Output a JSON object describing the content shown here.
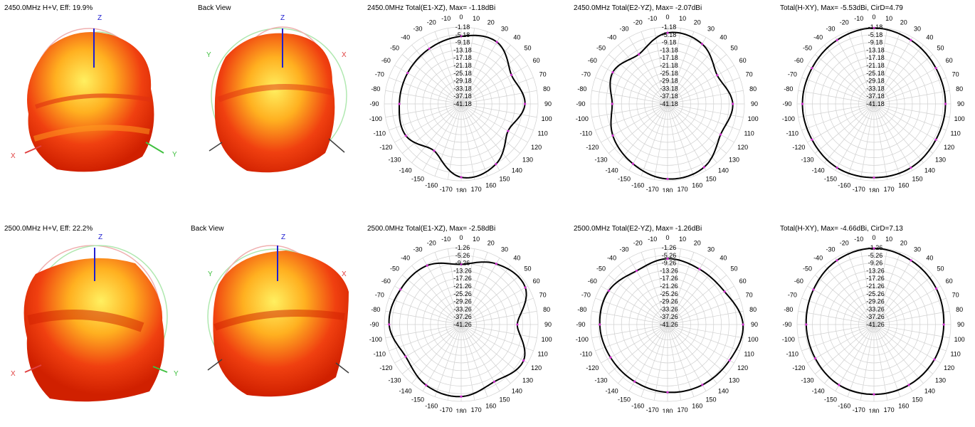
{
  "rows": [
    {
      "iso_title": "2450.0MHz H+V, Eff: 19.9%",
      "back_title": "Back View",
      "axes": {
        "x": "X",
        "y": "Y",
        "z": "Z"
      },
      "polars": [
        {
          "title": "2450.0MHz Total(E1-XZ), Max= -1.18dBi",
          "rings": [
            "-1.18",
            "-5.18",
            "-9.18",
            "-13.18",
            "-17.18",
            "-21.18",
            "-25.18",
            "-29.18",
            "-33.18",
            "-37.18",
            "-41.18"
          ]
        },
        {
          "title": "2450.0MHz Total(E2-YZ), Max= -2.07dBi",
          "rings": [
            "-1.18",
            "-5.18",
            "-9.18",
            "-13.18",
            "-17.18",
            "-21.18",
            "-25.18",
            "-29.18",
            "-33.18",
            "-37.18",
            "-41.18"
          ]
        },
        {
          "title": "Total(H-XY), Max= -5.53dBi, CirD=4.79",
          "rings": [
            "-1.18",
            "-5.18",
            "-9.18",
            "-13.18",
            "-17.18",
            "-21.18",
            "-25.18",
            "-29.18",
            "-33.18",
            "-37.18",
            "-41.18"
          ]
        }
      ]
    },
    {
      "iso_title": "2500.0MHz H+V, Eff: 22.2%",
      "back_title": "Back View",
      "axes": {
        "x": "X",
        "y": "Y",
        "z": "Z"
      },
      "polars": [
        {
          "title": "2500.0MHz Total(E1-XZ), Max= -2.58dBi",
          "rings": [
            "-1.26",
            "-5.26",
            "-9.26",
            "-13.26",
            "-17.26",
            "-21.26",
            "-25.26",
            "-29.26",
            "-33.26",
            "-37.26",
            "-41.26"
          ]
        },
        {
          "title": "2500.0MHz Total(E2-YZ), Max= -1.26dBi",
          "rings": [
            "-1.26",
            "-5.26",
            "-9.26",
            "-13.26",
            "-17.26",
            "-21.26",
            "-25.26",
            "-29.26",
            "-33.26",
            "-37.26",
            "-41.26"
          ]
        },
        {
          "title": "Total(H-XY), Max= -4.66dBi, CirD=7.13",
          "rings": [
            "-1.26",
            "-5.26",
            "-9.26",
            "-13.26",
            "-17.26",
            "-21.26",
            "-25.26",
            "-29.26",
            "-33.26",
            "-37.26",
            "-41.26"
          ]
        }
      ]
    }
  ],
  "angle_labels": [
    "-10",
    "0",
    "10",
    "20",
    "30",
    "40",
    "50",
    "60",
    "70",
    "80",
    "90",
    "100",
    "110",
    "120",
    "130",
    "140",
    "150",
    "160",
    "170",
    "180",
    "-170",
    "-160",
    "-150",
    "-140",
    "-130",
    "-120",
    "-110",
    "-100",
    "-90",
    "-80",
    "-70",
    "-60",
    "-50",
    "-40",
    "-30",
    "-20"
  ],
  "colors": {
    "trace": "#000000",
    "marker": "#d030d0",
    "grid": "#d0d0d0",
    "axis_x": "#e04040",
    "axis_y": "#40c040",
    "axis_z": "#2020d0"
  },
  "chart_data": [
    {
      "type": "polar",
      "title": "2450.0MHz Total(E1-XZ), Max= -1.18dBi",
      "rmin": -41.18,
      "rmax": -1.18,
      "theta": [
        0,
        30,
        60,
        90,
        120,
        150,
        180,
        210,
        240,
        270,
        300,
        330
      ],
      "values": [
        -6,
        -4,
        -11,
        -8,
        -13,
        -5,
        -3,
        -13,
        -8,
        -9,
        -9,
        -8
      ]
    },
    {
      "type": "polar",
      "title": "2450.0MHz Total(E2-YZ), Max= -2.07dBi",
      "rmin": -41.18,
      "rmax": -2.07,
      "theta": [
        0,
        30,
        60,
        90,
        120,
        150,
        180,
        210,
        240,
        270,
        300,
        330
      ],
      "values": [
        -5,
        -6,
        -12,
        -8,
        -10,
        -4,
        -3,
        -6,
        -9,
        -13,
        -9,
        -12
      ]
    },
    {
      "type": "polar",
      "title": "Total(H-XY), Max= -5.53dBi, CirD=4.79",
      "rmin": -41.18,
      "rmax": -5.53,
      "theta": [
        0,
        30,
        60,
        90,
        120,
        150,
        180,
        210,
        240,
        270,
        300,
        330
      ],
      "values": [
        -6,
        -7,
        -8,
        -8,
        -8,
        -7,
        -7,
        -7,
        -8,
        -8,
        -8,
        -7
      ]
    },
    {
      "type": "polar",
      "title": "2500.0MHz Total(E1-XZ), Max= -2.58dBi",
      "rmin": -41.26,
      "rmax": -2.58,
      "theta": [
        0,
        30,
        60,
        90,
        120,
        150,
        180,
        210,
        240,
        270,
        300,
        330
      ],
      "values": [
        -11,
        -6,
        -4,
        -13,
        -5,
        -8,
        -5,
        -6,
        -9,
        -5,
        -6,
        -7
      ]
    },
    {
      "type": "polar",
      "title": "2500.0MHz Total(E2-YZ), Max= -1.26dBi",
      "rmin": -41.26,
      "rmax": -1.26,
      "theta": [
        0,
        30,
        60,
        90,
        120,
        150,
        180,
        210,
        240,
        270,
        300,
        330
      ],
      "values": [
        -7,
        -8,
        -7,
        -2,
        -4,
        -5,
        -6,
        -7,
        -7,
        -6,
        -6,
        -9
      ]
    },
    {
      "type": "polar",
      "title": "Total(H-XY), Max= -4.66dBi, CirD=7.13",
      "rmin": -41.26,
      "rmax": -4.66,
      "theta": [
        0,
        30,
        60,
        90,
        120,
        150,
        180,
        210,
        240,
        270,
        300,
        330
      ],
      "values": [
        -5,
        -6,
        -7,
        -8,
        -8,
        -8,
        -8,
        -8,
        -9,
        -9,
        -8,
        -6
      ]
    }
  ]
}
